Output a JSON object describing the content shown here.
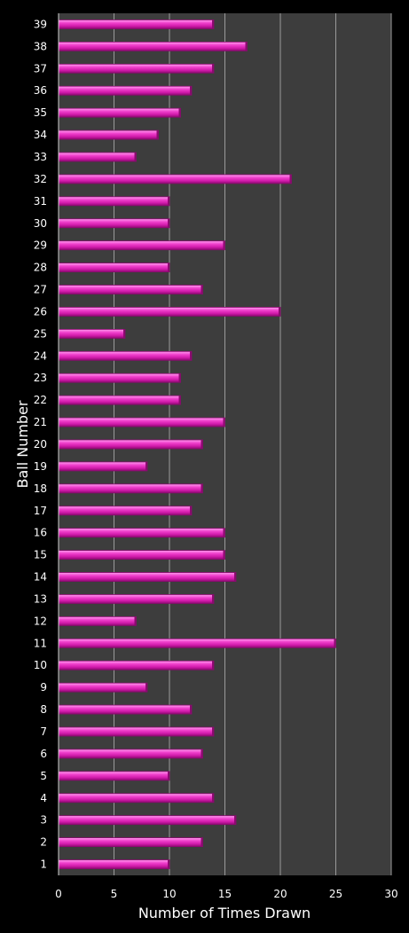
{
  "chart_data": {
    "type": "bar",
    "orientation": "horizontal",
    "title": "",
    "xlabel": "Number of Times Drawn",
    "ylabel": "Ball Number",
    "xlim": [
      0,
      30
    ],
    "x_ticks": [
      0,
      5,
      10,
      15,
      20,
      25,
      30
    ],
    "grid": "vertical",
    "legend": "none",
    "categories": [
      "1",
      "2",
      "3",
      "4",
      "5",
      "6",
      "7",
      "8",
      "9",
      "10",
      "11",
      "12",
      "13",
      "14",
      "15",
      "16",
      "17",
      "18",
      "19",
      "20",
      "21",
      "22",
      "23",
      "24",
      "25",
      "26",
      "27",
      "28",
      "29",
      "30",
      "31",
      "32",
      "33",
      "34",
      "35",
      "36",
      "37",
      "38",
      "39"
    ],
    "values": [
      10,
      13,
      16,
      14,
      10,
      13,
      14,
      12,
      8,
      14,
      25,
      7,
      14,
      16,
      15,
      15,
      12,
      13,
      8,
      13,
      15,
      11,
      11,
      12,
      6,
      20,
      13,
      10,
      15,
      10,
      10,
      21,
      7,
      9,
      11,
      12,
      14,
      17,
      14
    ],
    "colors": {
      "background": "#000000",
      "plot_area": "#3d3d3d",
      "gridline": "#9a9a9a",
      "bar": "#e020b8",
      "bar_highlight": "#ff8ae8",
      "bar_shadow": "#8c0a70",
      "text": "#ffffff"
    }
  }
}
